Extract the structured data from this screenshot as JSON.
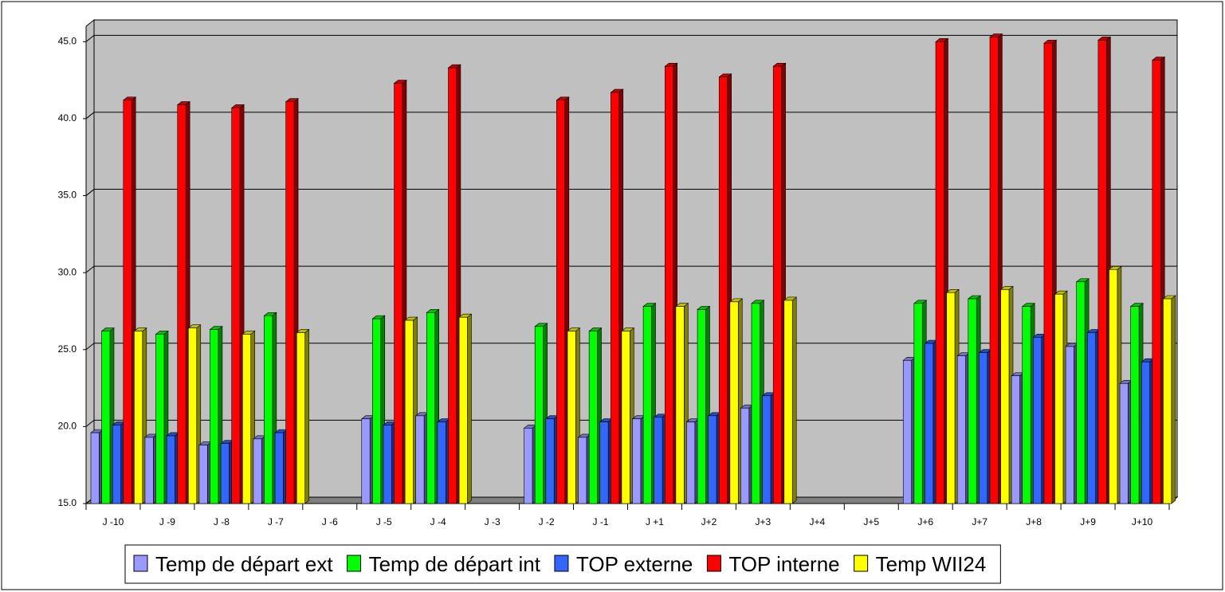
{
  "chart_data": {
    "type": "bar3d",
    "categories": [
      "J -10",
      "J -9",
      "J -8",
      "J -7",
      "J -6",
      "J -5",
      "J -4",
      "J -3",
      "J -2",
      "J -1",
      "J +1",
      "J+2",
      "J+3",
      "J+4",
      "J+5",
      "J+6",
      "J+7",
      "J+8",
      "J+9",
      "J+10"
    ],
    "series": [
      {
        "name": "Temp de départ ext",
        "color": "#9999ff",
        "values": [
          19.6,
          19.3,
          18.8,
          19.2,
          null,
          20.5,
          20.7,
          null,
          19.9,
          19.3,
          20.5,
          20.3,
          21.2,
          null,
          null,
          24.3,
          24.6,
          23.3,
          25.2,
          22.8
        ]
      },
      {
        "name": "Temp de départ int",
        "color": "#00ff00",
        "values": [
          26.2,
          26.0,
          26.3,
          27.2,
          null,
          27.0,
          27.4,
          null,
          26.5,
          26.2,
          27.8,
          27.6,
          28.0,
          null,
          null,
          28.0,
          28.3,
          27.8,
          29.4,
          27.8
        ]
      },
      {
        "name": "TOP externe",
        "color": "#3366ff",
        "values": [
          20.1,
          19.4,
          18.9,
          19.6,
          null,
          20.1,
          20.3,
          null,
          20.5,
          20.3,
          20.6,
          20.7,
          22.0,
          null,
          null,
          25.4,
          24.8,
          25.8,
          26.1,
          24.2
        ]
      },
      {
        "name": "TOP interne",
        "color": "#ff0000",
        "values": [
          41.2,
          40.9,
          40.7,
          41.1,
          null,
          42.3,
          43.3,
          null,
          41.2,
          41.7,
          43.4,
          42.7,
          43.4,
          null,
          null,
          45.0,
          45.3,
          44.9,
          45.1,
          43.8
        ]
      },
      {
        "name": "Temp WII24",
        "color": "#ffff00",
        "values": [
          26.2,
          26.4,
          26.0,
          26.1,
          null,
          26.9,
          27.1,
          null,
          26.2,
          26.2,
          27.8,
          28.1,
          28.2,
          null,
          null,
          28.7,
          28.9,
          28.6,
          30.2,
          28.3
        ]
      }
    ],
    "ylim": [
      15,
      46
    ],
    "yticks": [
      {
        "value": 15,
        "label": "15.0"
      },
      {
        "value": 20,
        "label": "20.0"
      },
      {
        "value": 25,
        "label": "25.0"
      },
      {
        "value": 30,
        "label": "30.0"
      },
      {
        "value": 35,
        "label": "35.0"
      },
      {
        "value": 40,
        "label": "40.0"
      },
      {
        "value": 45,
        "label": "45.0"
      }
    ],
    "grid": true,
    "legend": "bottom"
  }
}
